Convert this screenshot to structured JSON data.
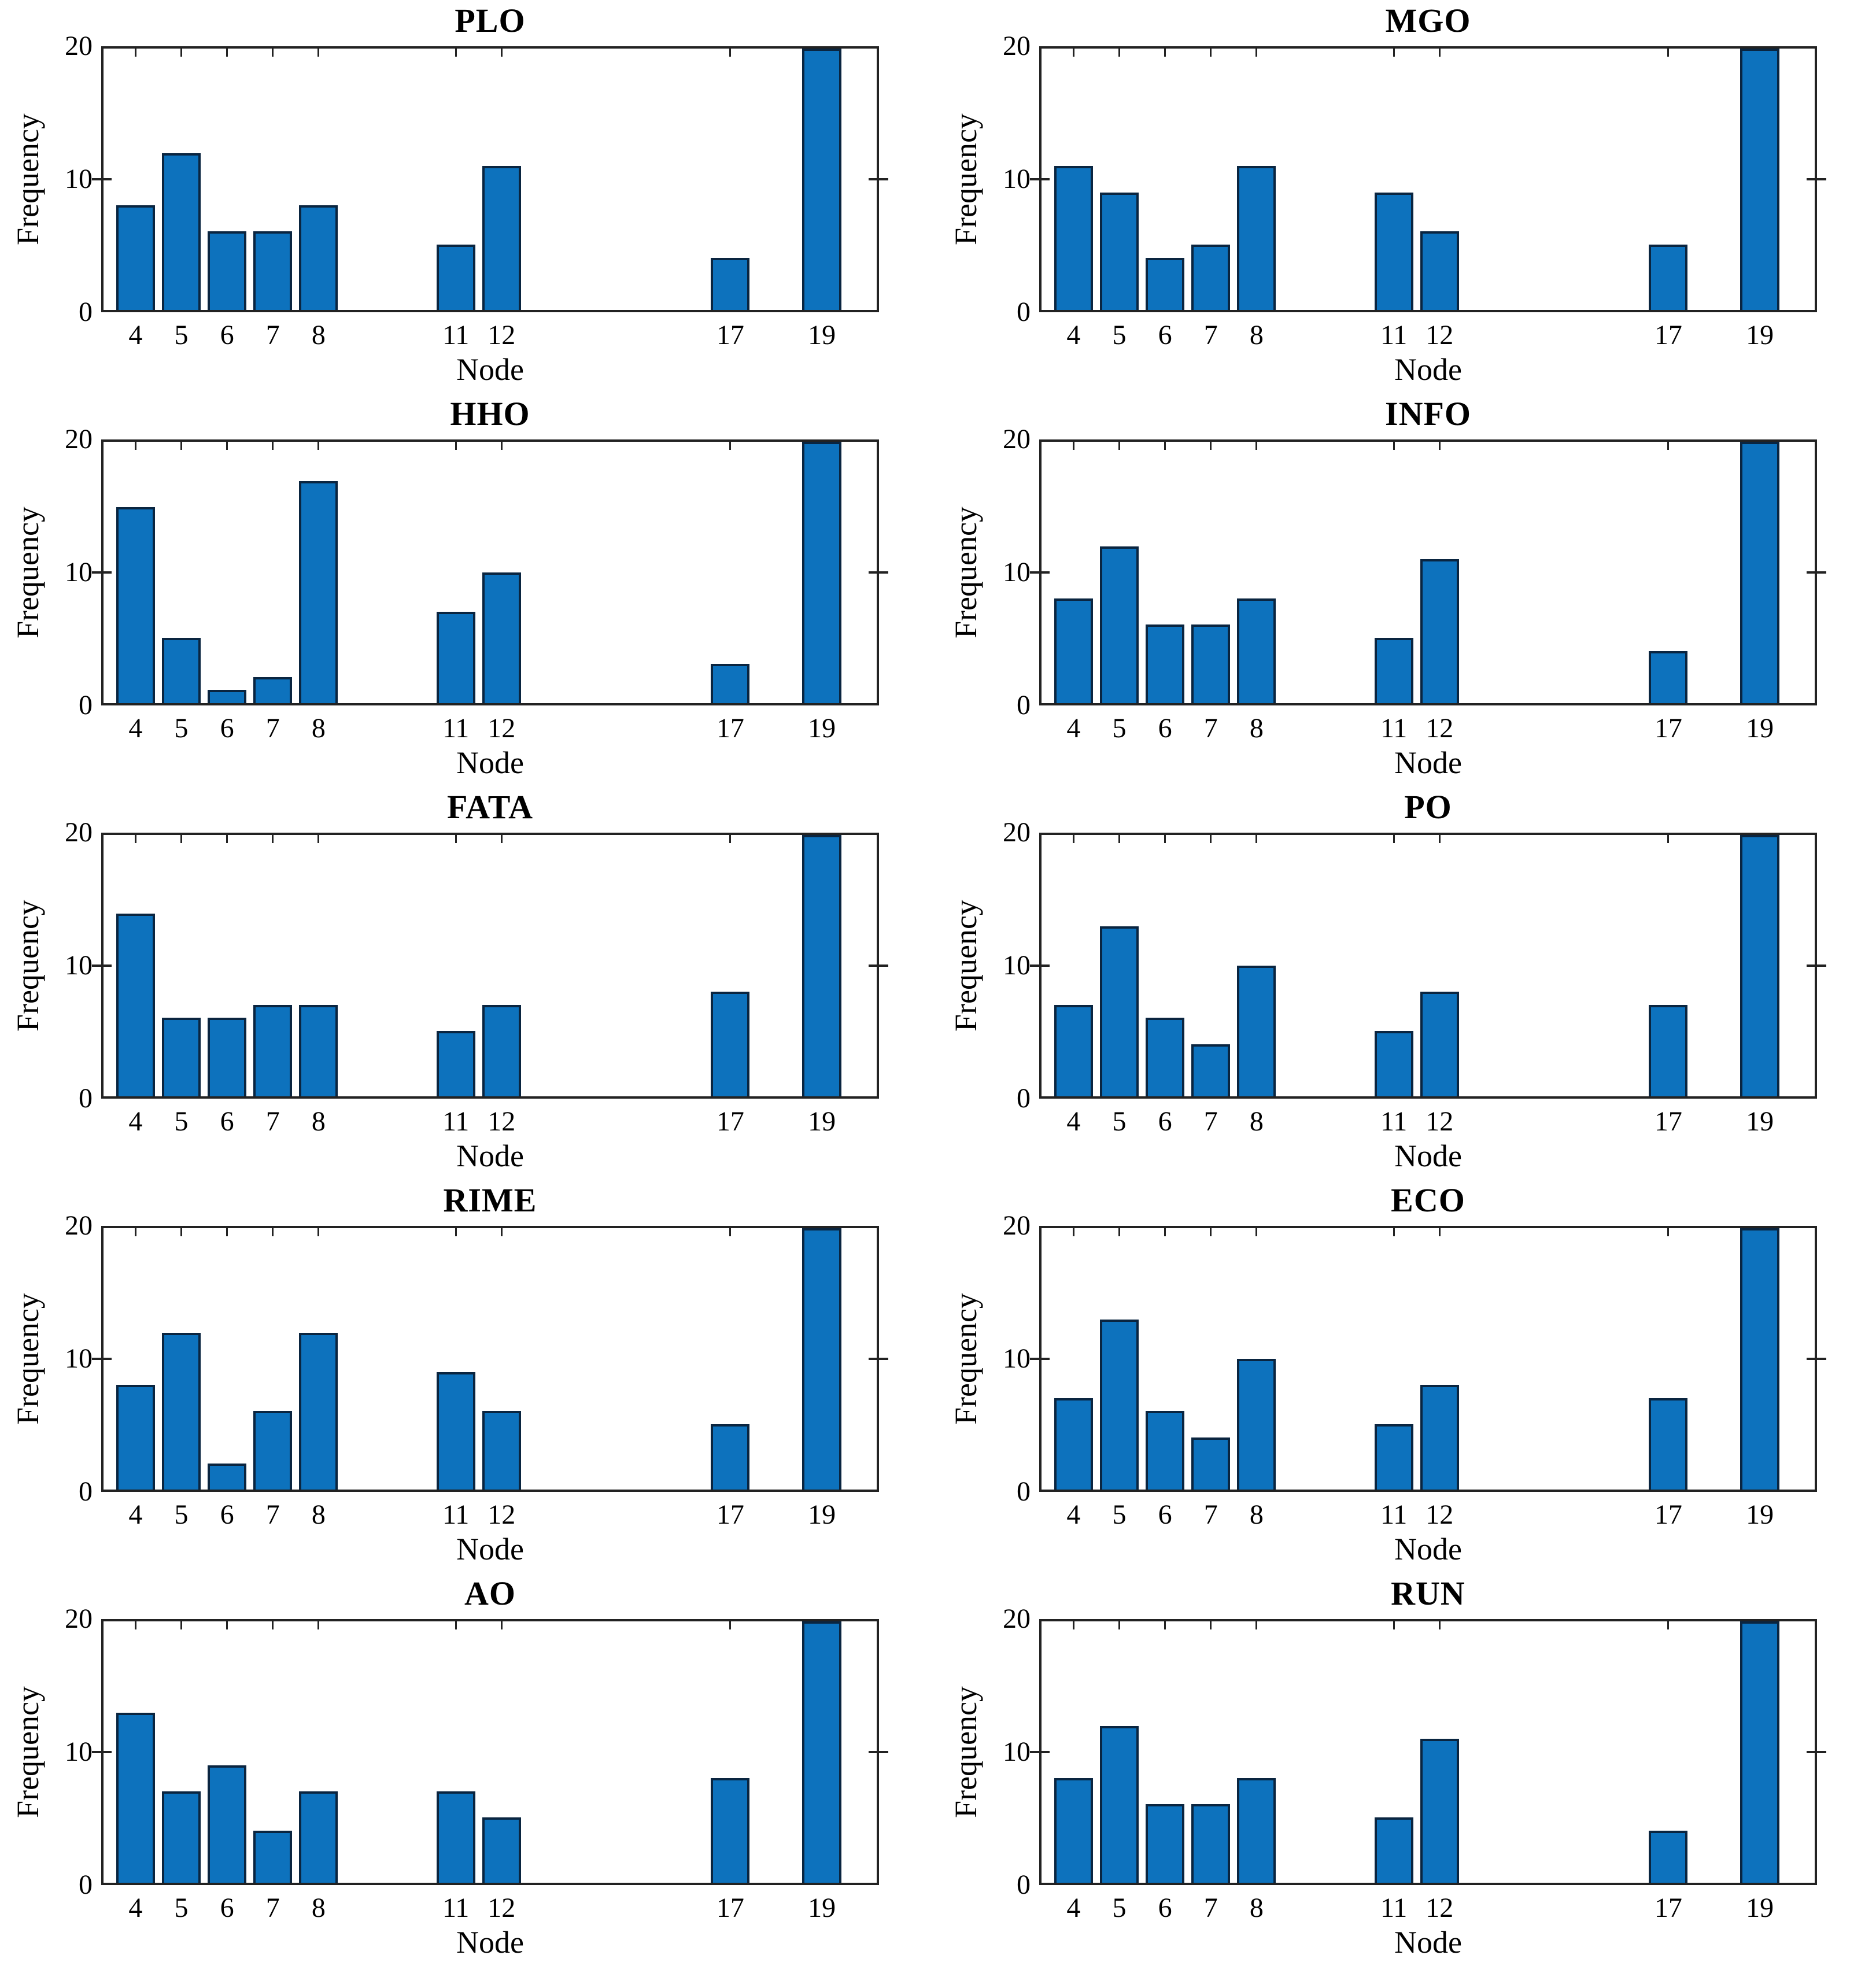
{
  "figure": {
    "background": "#ffffff",
    "grid_layout": "5 rows x 2 columns"
  },
  "chart_data": {
    "type": "bar",
    "categories": [
      4,
      5,
      6,
      7,
      8,
      11,
      12,
      17,
      19
    ],
    "xlabel": "Node",
    "ylabel": "Frequency",
    "ylim": [
      0,
      20
    ],
    "yticks": [
      0,
      10,
      20
    ],
    "xlim": [
      3.3,
      20.2
    ],
    "bar_width_units": 0.85,
    "bar_color": "#0d72bd",
    "bar_edge_color": "#0a2540",
    "axis_color": "#222222",
    "grid": false,
    "box": true,
    "legend": "none",
    "series": [
      {
        "name": "PLO",
        "values": [
          8,
          12,
          6,
          6,
          8,
          5,
          11,
          4,
          20
        ]
      },
      {
        "name": "MGO",
        "values": [
          11,
          9,
          4,
          5,
          11,
          9,
          6,
          5,
          20
        ]
      },
      {
        "name": "HHO",
        "values": [
          15,
          5,
          1,
          2,
          17,
          7,
          10,
          3,
          20
        ]
      },
      {
        "name": "INFO",
        "values": [
          8,
          12,
          6,
          6,
          8,
          5,
          11,
          4,
          20
        ]
      },
      {
        "name": "FATA",
        "values": [
          14,
          6,
          6,
          7,
          7,
          5,
          7,
          8,
          20
        ]
      },
      {
        "name": "PO",
        "values": [
          7,
          13,
          6,
          4,
          10,
          5,
          8,
          7,
          20
        ]
      },
      {
        "name": "RIME",
        "values": [
          8,
          12,
          2,
          6,
          12,
          9,
          6,
          5,
          20
        ]
      },
      {
        "name": "ECO",
        "values": [
          7,
          13,
          6,
          4,
          10,
          5,
          8,
          7,
          20
        ]
      },
      {
        "name": "AO",
        "values": [
          13,
          7,
          9,
          4,
          7,
          7,
          5,
          8,
          20
        ]
      },
      {
        "name": "RUN",
        "values": [
          8,
          12,
          6,
          6,
          8,
          5,
          11,
          4,
          20
        ]
      }
    ]
  }
}
